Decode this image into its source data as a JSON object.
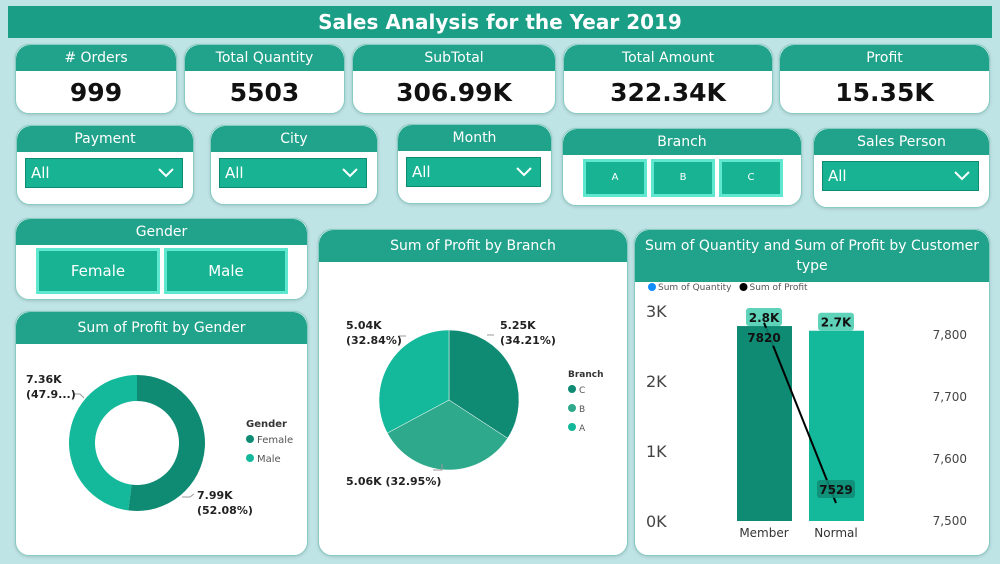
{
  "title": "Sales Analysis for the Year 2019",
  "kpis": [
    {
      "label": "# Orders",
      "value": "999"
    },
    {
      "label": "Total Quantity",
      "value": "5503"
    },
    {
      "label": "SubTotal",
      "value": "306.99K"
    },
    {
      "label": "Total Amount",
      "value": "322.34K"
    },
    {
      "label": "Profit",
      "value": "15.35K"
    }
  ],
  "slicers": [
    {
      "label": "Payment",
      "selected": "All"
    },
    {
      "label": "City",
      "selected": "All"
    },
    {
      "label": "Month",
      "selected": "All"
    },
    {
      "label": "Sales Person",
      "selected": "All"
    }
  ],
  "branch_slicer": {
    "label": "Branch",
    "options": [
      "A",
      "B",
      "C"
    ]
  },
  "gender_slicer": {
    "label": "Gender",
    "options": [
      "Female",
      "Male"
    ]
  },
  "chart_data": [
    {
      "type": "donut",
      "title": "Sum of Profit by Gender",
      "legend_title": "Gender",
      "categories": [
        "Female",
        "Male"
      ],
      "values": [
        7990,
        7360
      ],
      "value_labels": [
        "7.99K (52.08%)",
        "7.36K (47.9...)"
      ],
      "colors": [
        "#0f8a73",
        "#14b89a"
      ]
    },
    {
      "type": "pie",
      "title": "Sum of Profit by Branch",
      "legend_title": "Branch",
      "categories": [
        "C",
        "B",
        "A"
      ],
      "values": [
        5250,
        5060,
        5040
      ],
      "value_labels": [
        "5.25K (34.21%)",
        "5.06K (32.95%)",
        "5.04K (32.84%)"
      ],
      "colors": [
        "#0f8a73",
        "#2fa98c",
        "#14b89a"
      ]
    },
    {
      "type": "combo",
      "title": "Sum of Quantity and Sum of Profit by Customer type",
      "categories": [
        "Member",
        "Normal"
      ],
      "series": [
        {
          "name": "Sum of Quantity",
          "type": "bar",
          "color": "#118dff",
          "point_colors": [
            "#0f8a73",
            "#14b89a"
          ],
          "values": [
            2785,
            2718
          ],
          "value_labels": [
            "2.8K",
            "2.7K"
          ]
        },
        {
          "name": "Sum of Profit",
          "type": "line",
          "axis": "y2",
          "color": "#000000",
          "values": [
            7820,
            7529
          ]
        }
      ],
      "ylim": [
        0,
        3000
      ],
      "yticks": [
        {
          "value": 0,
          "label": "0K"
        },
        {
          "value": 1000,
          "label": "1K"
        },
        {
          "value": 2000,
          "label": "2K"
        },
        {
          "value": 3000,
          "label": "3K"
        }
      ],
      "y2lim": [
        7500,
        7839
      ],
      "y2ticks": [
        {
          "value": 7500,
          "label": "7,500"
        },
        {
          "value": 7600,
          "label": "7,600"
        },
        {
          "value": 7700,
          "label": "7,700"
        },
        {
          "value": 7800,
          "label": "7,800"
        }
      ]
    }
  ]
}
